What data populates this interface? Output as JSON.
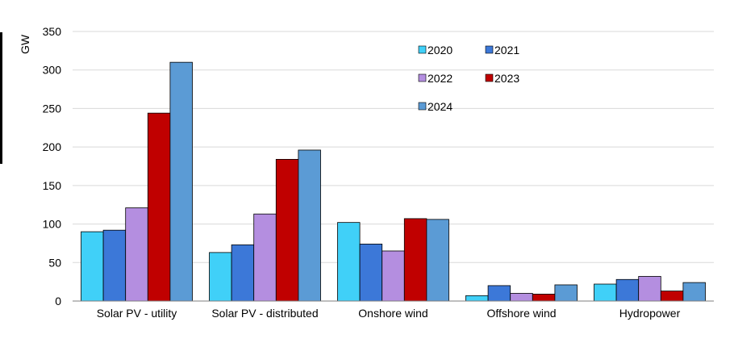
{
  "chart_data": {
    "type": "bar",
    "ylabel": "GW",
    "ylim": [
      0,
      350
    ],
    "yticks": [
      0,
      50,
      100,
      150,
      200,
      250,
      300,
      350
    ],
    "grid": true,
    "legend_position": "top-right",
    "categories": [
      "Solar PV - utility",
      "Solar PV - distributed",
      "Onshore wind",
      "Offshore wind",
      "Hydropower"
    ],
    "series": [
      {
        "name": "2020",
        "color": "#40d0f8",
        "values": [
          90,
          63,
          102,
          7,
          22
        ]
      },
      {
        "name": "2021",
        "color": "#3c78d8",
        "values": [
          92,
          73,
          74,
          20,
          28
        ]
      },
      {
        "name": "2022",
        "color": "#b48ee0",
        "values": [
          121,
          113,
          65,
          10,
          32
        ]
      },
      {
        "name": "2023",
        "color": "#c00000",
        "values": [
          244,
          184,
          107,
          9,
          13
        ]
      },
      {
        "name": "2024",
        "color": "#5b9bd5",
        "values": [
          310,
          196,
          106,
          21,
          24
        ]
      }
    ]
  }
}
